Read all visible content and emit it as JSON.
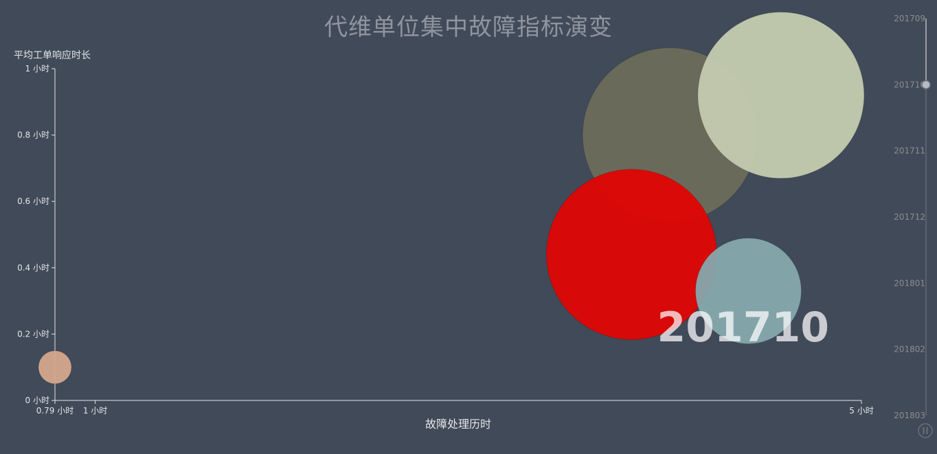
{
  "chart_data": {
    "type": "scatter",
    "variant": "bubble",
    "title": "代维单位集中故障指标演变",
    "xlabel": "故障处理历时",
    "ylabel": "平均工单响应时长",
    "xlim": [
      0.79,
      5
    ],
    "ylim": [
      0,
      1
    ],
    "x_ticks": [
      {
        "value": 0.79,
        "label": "0.79 小时"
      },
      {
        "value": 1,
        "label": "1 小时"
      },
      {
        "value": 5,
        "label": "5 小时"
      }
    ],
    "y_ticks": [
      {
        "value": 0,
        "label": "0 小时"
      },
      {
        "value": 0.2,
        "label": "0.2 小时"
      },
      {
        "value": 0.4,
        "label": "0.4 小时"
      },
      {
        "value": 0.6,
        "label": "0.6 小时"
      },
      {
        "value": 0.8,
        "label": "0.8 小时"
      },
      {
        "value": 1,
        "label": "1 小时"
      }
    ],
    "grid": false,
    "current_period": "201710",
    "timeline": [
      "201709",
      "201710",
      "201711",
      "201712",
      "201801",
      "201802",
      "201803"
    ],
    "current_index": 1,
    "points": [
      {
        "x": 0.79,
        "y": 0.1,
        "size": 24,
        "color": "#d4a78e",
        "opacity": 0.95
      },
      {
        "x": 4.0,
        "y": 0.8,
        "size": 127,
        "color": "#6b6c5b",
        "opacity": 0.95
      },
      {
        "x": 4.58,
        "y": 0.92,
        "size": 121,
        "color": "#c4cbb0",
        "opacity": 0.95
      },
      {
        "x": 3.8,
        "y": 0.44,
        "size": 124,
        "color": "#e00505",
        "opacity": 0.95
      },
      {
        "x": 4.41,
        "y": 0.33,
        "size": 77,
        "color": "#86a8ad",
        "opacity": 0.95
      }
    ]
  },
  "colors": {
    "background": "#404a59",
    "axis": "#e6e6e6",
    "timeline": "#8e8e8e"
  }
}
